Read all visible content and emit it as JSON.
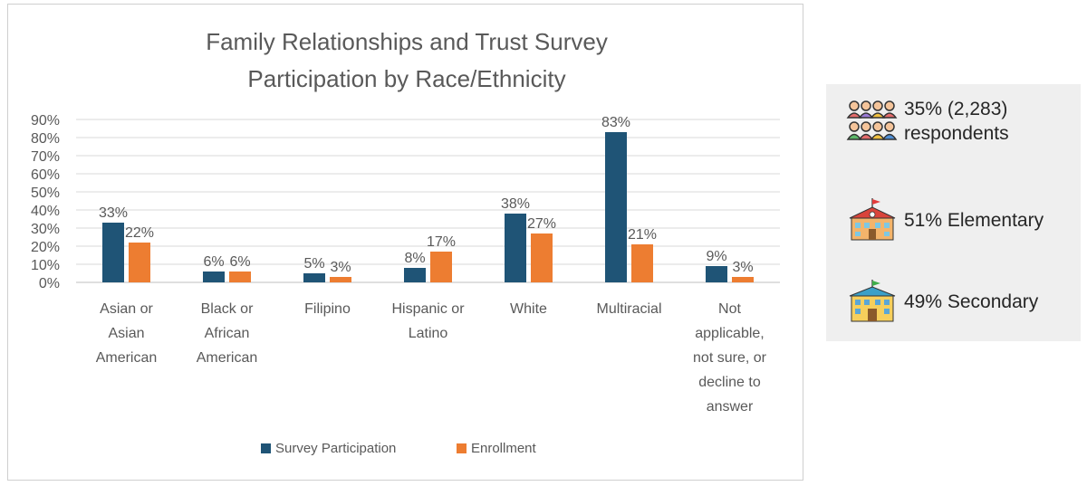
{
  "chart_data": {
    "type": "bar",
    "title": "Family Relationships and Trust Survey Participation by Race/Ethnicity",
    "title_lines": [
      "Family Relationships and Trust Survey",
      "Participation by Race/Ethnicity"
    ],
    "categories": [
      [
        "Asian or",
        "Asian",
        "American"
      ],
      [
        "Black or",
        "African",
        "American"
      ],
      [
        "Filipino"
      ],
      [
        "Hispanic or",
        "Latino"
      ],
      [
        "White"
      ],
      [
        "Multiracial"
      ],
      [
        "Not",
        "applicable,",
        "not sure, or",
        "decline to",
        "answer"
      ]
    ],
    "series": [
      {
        "name": "Survey Participation",
        "color": "#1f5476",
        "values": [
          33,
          6,
          5,
          8,
          38,
          83,
          9
        ],
        "labels": [
          "33%",
          "6%",
          "5%",
          "8%",
          "38%",
          "83%",
          "9%"
        ]
      },
      {
        "name": "Enrollment",
        "color": "#ed7d31",
        "values": [
          22,
          6,
          3,
          17,
          27,
          21,
          3
        ],
        "labels": [
          "22%",
          "6%",
          "3%",
          "17%",
          "27%",
          "21%",
          "3%"
        ]
      }
    ],
    "ylim": [
      0,
      90
    ],
    "yticks": [
      "0%",
      "10%",
      "20%",
      "30%",
      "40%",
      "50%",
      "60%",
      "70%",
      "80%",
      "90%"
    ],
    "grid": true,
    "legend_position": "bottom"
  },
  "info": {
    "respondents": {
      "text": "35% (2,283)\nrespondents",
      "icon": "people-group-icon"
    },
    "elementary": {
      "text": "51% Elementary",
      "icon": "elementary-school-icon"
    },
    "secondary": {
      "text": "49% Secondary",
      "icon": "secondary-school-icon"
    }
  }
}
